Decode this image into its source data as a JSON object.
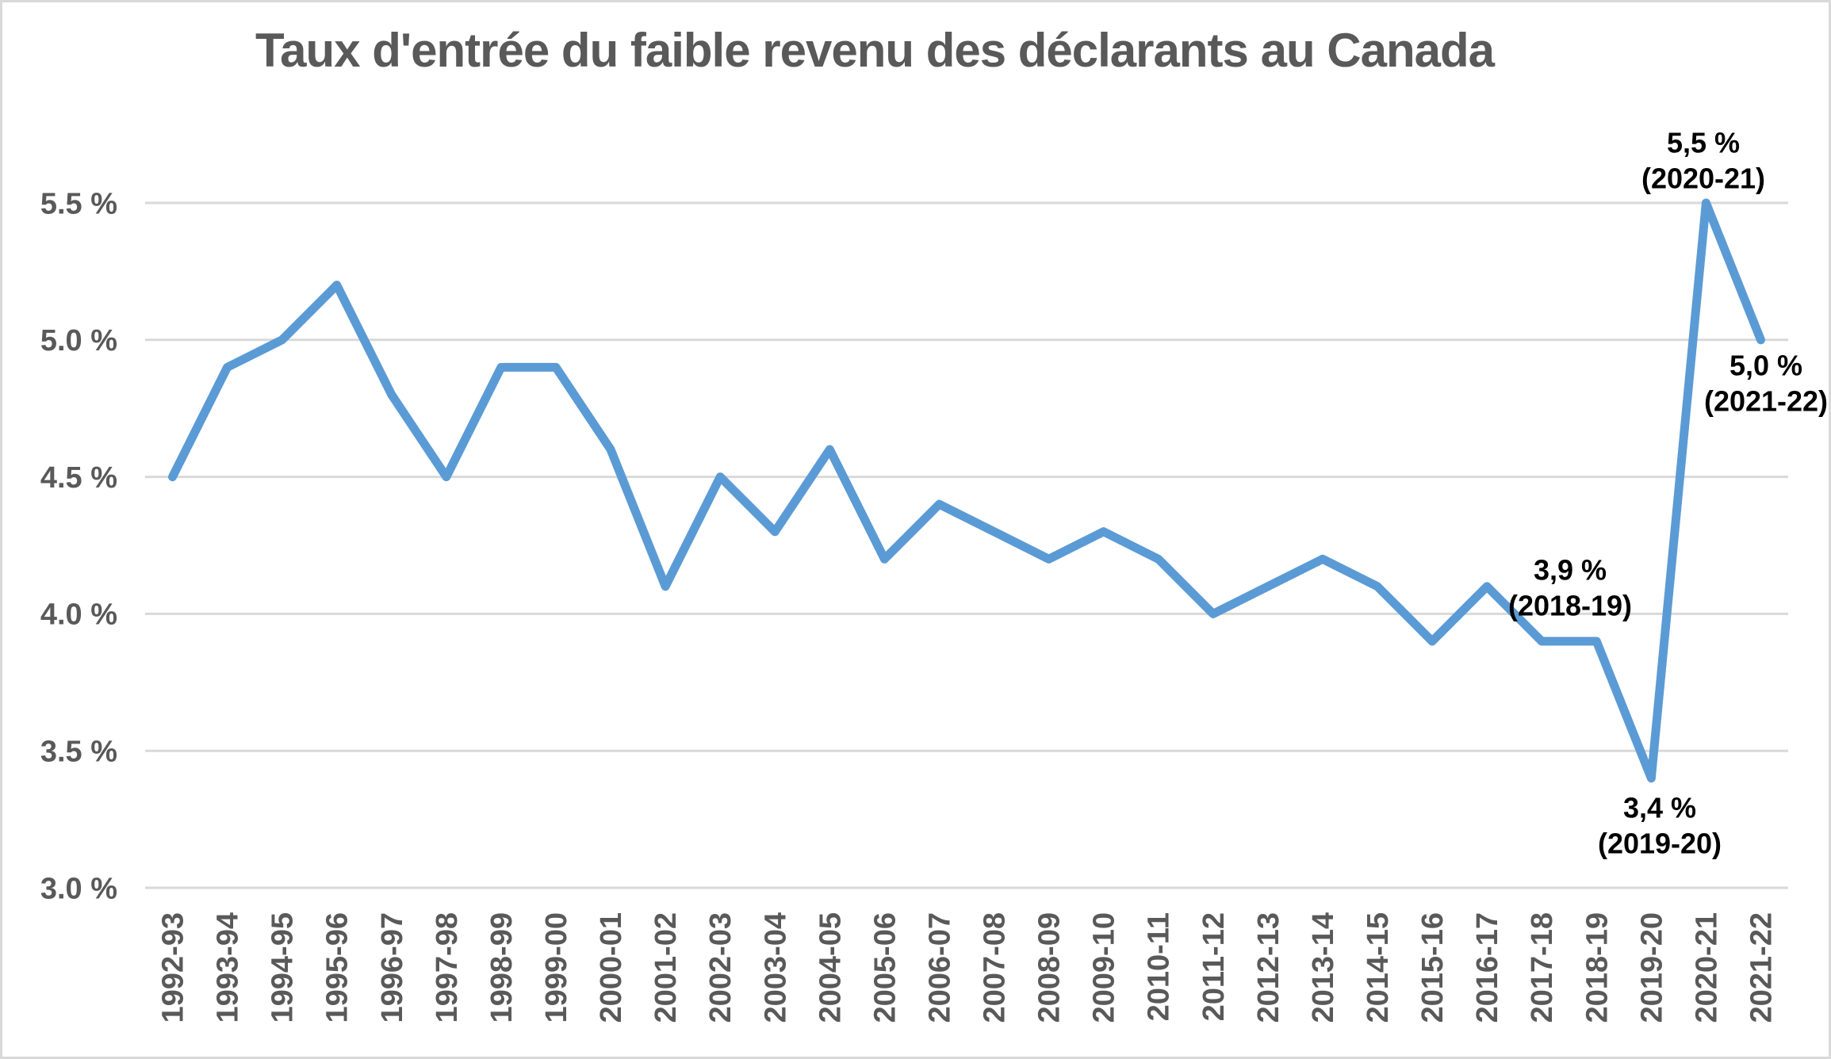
{
  "page": {
    "background_color": "#ffffff",
    "border_color": "#d9d9d9"
  },
  "chart_data": {
    "type": "line",
    "title": "Taux d'entrée du faible revenu des déclarants au Canada",
    "categories": [
      "1992-93",
      "1993-94",
      "1994-95",
      "1995-96",
      "1996-97",
      "1997-98",
      "1998-99",
      "1999-00",
      "2000-01",
      "2001-02",
      "2002-03",
      "2003-04",
      "2004-05",
      "2005-06",
      "2006-07",
      "2007-08",
      "2008-09",
      "2009-10",
      "2010-11",
      "2011-12",
      "2012-13",
      "2013-14",
      "2014-15",
      "2015-16",
      "2016-17",
      "2017-18",
      "2018-19",
      "2019-20",
      "2020-21",
      "2021-22"
    ],
    "series": [
      {
        "name": "Taux d'entrée du faible revenu",
        "values": [
          4.5,
          4.9,
          5.0,
          5.2,
          4.8,
          4.5,
          4.9,
          4.9,
          4.6,
          4.1,
          4.5,
          4.3,
          4.6,
          4.2,
          4.4,
          4.3,
          4.2,
          4.3,
          4.2,
          4.0,
          4.1,
          4.2,
          4.1,
          3.9,
          4.1,
          3.9,
          3.9,
          3.4,
          5.5,
          5.0
        ]
      }
    ],
    "xlabel": "",
    "ylabel": "",
    "ylim": [
      3.0,
      5.5
    ],
    "y_tick_step": 0.5,
    "y_ticks": [
      3.0,
      3.5,
      4.0,
      4.5,
      5.0,
      5.5
    ],
    "y_tick_labels": [
      "3.0 %",
      "3.5 %",
      "4.0 %",
      "4.5 %",
      "5.0 %",
      "5.5 %"
    ],
    "grid": "horizontal",
    "legend_position": "none",
    "line_color": "#5B9BD5",
    "gridline_color": "#D9D9D9",
    "axis_text_color": "#595959",
    "annotation_color": "#000000",
    "annotations": [
      {
        "lines": [
          "3,9 %",
          "(2018-19)"
        ],
        "category": "2018-19",
        "value": 3.9
      },
      {
        "lines": [
          "3,4 %",
          "(2019-20)"
        ],
        "category": "2019-20",
        "value": 3.4
      },
      {
        "lines": [
          "5,5 %",
          "(2020-21)"
        ],
        "category": "2020-21",
        "value": 5.5
      },
      {
        "lines": [
          "5,0 %",
          "(2021-22)"
        ],
        "category": "2021-22",
        "value": 5.0
      }
    ]
  }
}
